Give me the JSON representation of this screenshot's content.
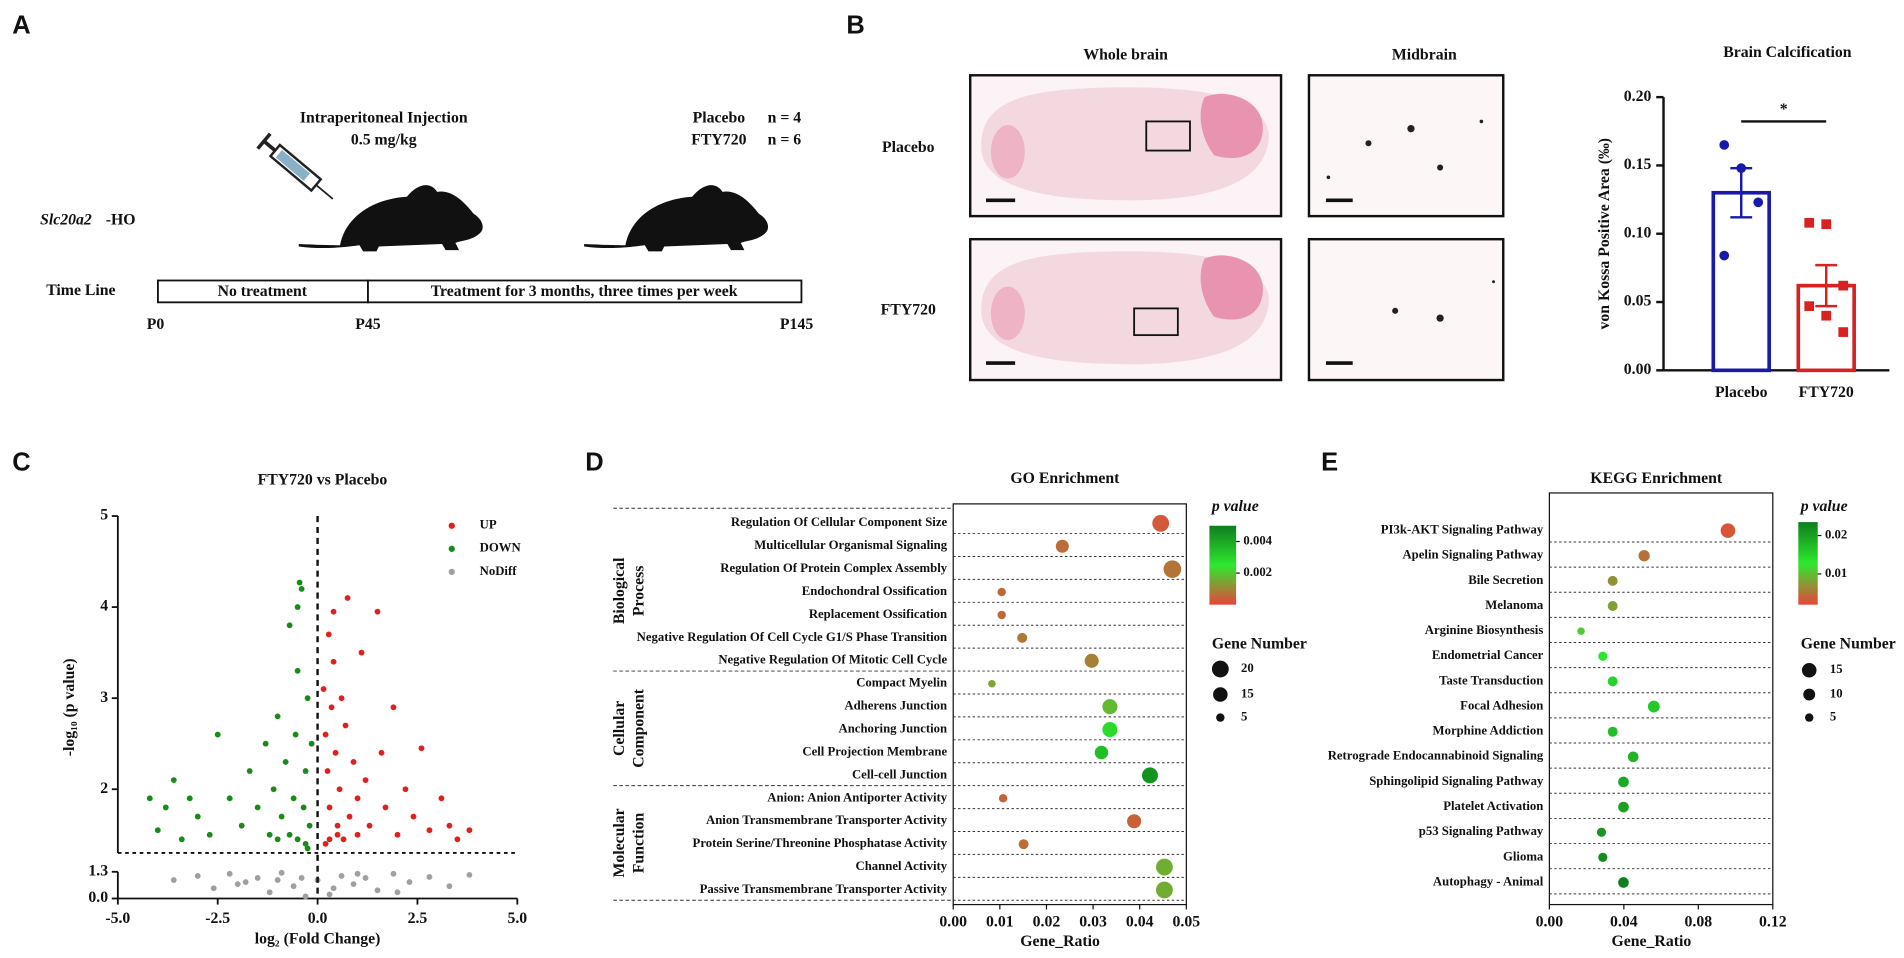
{
  "panel_labels": [
    "A",
    "B",
    "C",
    "D",
    "E"
  ],
  "panel_a": {
    "injection": "Intraperitoneal Injection",
    "dose": "0.5 mg/kg",
    "groups": [
      {
        "name": "Placebo",
        "n": "n = 4",
        "color": "#1c1c9c"
      },
      {
        "name": "FTY720",
        "n": "n = 6",
        "color": "#d42020"
      }
    ],
    "strain": "Slc20a2",
    "strain_suffix": "-HO",
    "timeline_label": "Time Line",
    "phases": [
      "No treatment",
      "Treatment for 3 months, three times per week"
    ],
    "timepoints": [
      "P0",
      "P45",
      "P145"
    ]
  },
  "panel_b": {
    "columns": [
      "Whole brain",
      "Midbrain"
    ],
    "rows": [
      "Placebo",
      "FTY720"
    ]
  },
  "chart_data": [
    {
      "type": "bar",
      "title": "Brain Calcification",
      "ylabel": "von Kossa Positive Area (‰)",
      "categories": [
        "Placebo",
        "FTY720"
      ],
      "values": [
        0.13,
        0.062
      ],
      "errors": [
        0.018,
        0.015
      ],
      "points": [
        [
          0.165,
          0.148,
          0.123,
          0.084
        ],
        [
          0.108,
          0.107,
          0.062,
          0.047,
          0.04,
          0.028
        ]
      ],
      "markers": [
        "circle",
        "square"
      ],
      "colors": [
        "#1a1aaa",
        "#d82222"
      ],
      "ylim": [
        0,
        0.2
      ],
      "yticks": [
        {
          "value": 0,
          "label": "0.00"
        },
        {
          "value": 0.05,
          "label": "0.05"
        },
        {
          "value": 0.1,
          "label": "0.10"
        },
        {
          "value": 0.15,
          "label": "0.15"
        },
        {
          "value": 0.2,
          "label": "0.20"
        }
      ],
      "annotation": "*"
    },
    {
      "type": "scatter",
      "title": "FTY720 vs Placebo",
      "xlabel": "log₂ (Fold Change)",
      "ylabel": "-log₁₀ (p value)",
      "series": [
        {
          "name": "UP",
          "color": "#e0201e",
          "x": [
            0.15,
            0.2,
            0.25,
            0.3,
            0.35,
            0.4,
            0.45,
            0.5,
            0.55,
            0.6,
            0.7,
            0.75,
            0.8,
            0.9,
            1.0,
            1.1,
            1.2,
            1.3,
            1.5,
            1.6,
            1.7,
            1.9,
            2.0,
            2.2,
            2.4,
            2.6,
            2.8,
            3.1,
            3.3,
            3.5,
            3.8,
            0.3,
            0.5,
            0.2,
            0.65,
            1.0,
            0.4,
            0.28
          ],
          "values": [
            3.1,
            2.6,
            2.2,
            1.8,
            2.9,
            3.4,
            2.4,
            1.6,
            2.0,
            3.0,
            2.7,
            4.1,
            1.7,
            2.3,
            1.9,
            3.5,
            2.1,
            1.6,
            3.95,
            2.4,
            1.8,
            2.9,
            1.5,
            2.0,
            1.7,
            2.45,
            1.55,
            1.9,
            1.6,
            1.45,
            1.55,
            1.45,
            1.5,
            1.4,
            1.45,
            1.5,
            3.95,
            3.7
          ]
        },
        {
          "name": "DOWN",
          "color": "#1a8a1a",
          "x": [
            -0.15,
            -0.2,
            -0.25,
            -0.3,
            -0.35,
            -0.4,
            -0.45,
            -0.5,
            -0.55,
            -0.6,
            -0.7,
            -0.8,
            -0.9,
            -1.0,
            -1.1,
            -1.2,
            -1.3,
            -1.5,
            -1.7,
            -1.9,
            -2.2,
            -2.5,
            -2.7,
            -3.0,
            -3.2,
            -3.4,
            -3.6,
            -3.8,
            -4.0,
            -4.2,
            -0.3,
            -0.5,
            -0.7,
            -0.25,
            -1.0,
            -0.5
          ],
          "values": [
            2.5,
            1.6,
            3.0,
            2.2,
            1.8,
            4.2,
            4.27,
            3.3,
            2.6,
            1.9,
            3.8,
            2.3,
            1.7,
            2.8,
            2.0,
            1.5,
            2.5,
            1.8,
            2.2,
            1.6,
            1.9,
            2.6,
            1.5,
            1.7,
            1.9,
            1.45,
            2.1,
            1.8,
            1.55,
            1.9,
            1.4,
            1.45,
            1.5,
            1.35,
            1.45,
            4.0
          ]
        },
        {
          "name": "NoDiff",
          "color": "#a0a0a0",
          "x": [
            -3.6,
            -3.0,
            -2.6,
            -2.2,
            -1.8,
            -1.5,
            -1.2,
            -0.9,
            -0.6,
            -0.3,
            0.0,
            0.3,
            0.6,
            0.9,
            1.2,
            1.5,
            1.9,
            2.3,
            2.8,
            3.3,
            3.8,
            -0.4,
            0.4,
            -1.0,
            1.0,
            -2.0,
            2.0
          ],
          "values": [
            0.9,
            1.1,
            0.5,
            1.2,
            0.8,
            1.0,
            0.3,
            1.25,
            0.6,
            0.1,
            0.9,
            0.2,
            1.1,
            0.7,
            1.0,
            0.4,
            1.2,
            0.8,
            1.05,
            0.6,
            1.15,
            1.0,
            0.5,
            0.9,
            1.2,
            0.7,
            0.3
          ]
        }
      ],
      "xlim": [
        -5,
        5
      ],
      "xticks": [
        {
          "value": -5,
          "label": "-5.0"
        },
        {
          "value": -2.5,
          "label": "-2.5"
        },
        {
          "value": 0,
          "label": "0.0"
        },
        {
          "value": 2.5,
          "label": "2.5"
        },
        {
          "value": 5,
          "label": "5.0"
        }
      ],
      "ylim": [
        0,
        5
      ],
      "yticks": [
        {
          "value": 0,
          "label": "0.0"
        },
        {
          "value": 1.3,
          "label": "1.3"
        },
        2,
        3,
        4,
        5
      ],
      "y_break": 1.3,
      "hline": 1.3,
      "vline": 0,
      "legend": "upper right"
    },
    {
      "type": "dot",
      "title": "GO Enrichment",
      "xlabel": "Gene_Ratio",
      "categories": [
        "Regulation Of Cellular Component Size",
        "Multicellular Organismal Signaling",
        "Regulation Of Protein Complex Assembly",
        "Endochondral Ossification",
        "Replacement Ossification",
        "Negative Regulation Of Cell Cycle G1/S Phase Transition",
        "Negative Regulation Of Mitotic Cell Cycle",
        "Compact Myelin",
        "Adherens Junction",
        "Anchoring Junction",
        "Cell Projection Membrane",
        "Cell-cell Junction",
        "Anion: Anion Antiporter Activity",
        "Anion Transmembrane Transporter Activity",
        "Protein Serine/Threonine Phosphatase Activity",
        "Channel Activity",
        "Passive Transmembrane Transporter Activity"
      ],
      "values": [
        0.0445,
        0.0234,
        0.047,
        0.0104,
        0.0104,
        0.0148,
        0.0297,
        0.0083,
        0.0336,
        0.0336,
        0.0318,
        0.0422,
        0.0107,
        0.0388,
        0.0151,
        0.0453,
        0.0453
      ],
      "p_values": [
        0.0003,
        0.0006,
        0.0007,
        0.0005,
        0.0005,
        0.0008,
        0.0009,
        0.0015,
        0.0018,
        0.0028,
        0.0035,
        0.0045,
        0.0004,
        0.0004,
        0.0006,
        0.0016,
        0.0016
      ],
      "gene_numbers": [
        20,
        12,
        22,
        5,
        5,
        7,
        14,
        4,
        16,
        16,
        13,
        18,
        5,
        14,
        7,
        20,
        20
      ],
      "groups": [
        {
          "lines": [
            "Biological",
            "Process"
          ],
          "color": "#d42a2a",
          "count": 7
        },
        {
          "lines": [
            "Cellular",
            "Component"
          ],
          "color": "#b8960c",
          "count": 5
        },
        {
          "lines": [
            "Molecular",
            "Function"
          ],
          "color": "#3a4e9a",
          "count": 5
        }
      ],
      "xlim": [
        0,
        0.05
      ],
      "xticks": [
        {
          "value": 0,
          "label": "0.00"
        },
        0.01,
        0.02,
        0.03,
        0.04,
        0.05
      ],
      "colorbar_title": "p value",
      "clim": [
        0,
        0.005
      ],
      "cticks": [
        0.002,
        0.004
      ],
      "colorscale": [
        "#e8453a",
        "#2ee82e",
        "#0e7e1e"
      ],
      "size_title": "Gene Number",
      "size_legend": [
        20,
        15,
        5
      ]
    },
    {
      "type": "dot",
      "title": "KEGG Enrichment",
      "xlabel": "Gene_Ratio",
      "categories": [
        "PI3k-AKT Signaling Pathway",
        "Apelin Signaling Pathway",
        "Bile Secretion",
        "Melanoma",
        "Arginine Biosynthesis",
        "Endometrial Cancer",
        "Taste Transduction",
        "Focal Adhesion",
        "Morphine Addiction",
        "Retrograde Endocannabinoid Signaling",
        "Sphingolipid Signaling Pathway",
        "Platelet Activation",
        "p53 Signaling Pathway",
        "Glioma",
        "Autophagy - Animal"
      ],
      "values": [
        0.0959,
        0.0509,
        0.034,
        0.034,
        0.017,
        0.0287,
        0.034,
        0.0561,
        0.034,
        0.045,
        0.0398,
        0.0398,
        0.028,
        0.0287,
        0.0398
      ],
      "p_values": [
        0.003,
        0.005,
        0.007,
        0.008,
        0.011,
        0.013,
        0.015,
        0.016,
        0.017,
        0.018,
        0.019,
        0.02,
        0.021,
        0.022,
        0.024
      ],
      "gene_numbers": [
        15,
        9,
        7,
        7,
        4,
        6,
        7,
        10,
        7,
        8,
        8,
        8,
        6,
        6,
        8
      ],
      "xlim": [
        0,
        0.12
      ],
      "xticks": [
        {
          "value": 0,
          "label": "0.00"
        },
        {
          "value": 0.04,
          "label": "0.04"
        },
        {
          "value": 0.08,
          "label": "0.08"
        },
        {
          "value": 0.12,
          "label": "0.12"
        }
      ],
      "colorbar_title": "p value",
      "clim": [
        0.002,
        0.0235
      ],
      "cticks": [
        0.01,
        0.02
      ],
      "colorscale": [
        "#e8453a",
        "#2ee82e",
        "#0e7e1e"
      ],
      "size_title": "Gene Number",
      "size_legend": [
        15,
        10,
        5
      ]
    }
  ]
}
